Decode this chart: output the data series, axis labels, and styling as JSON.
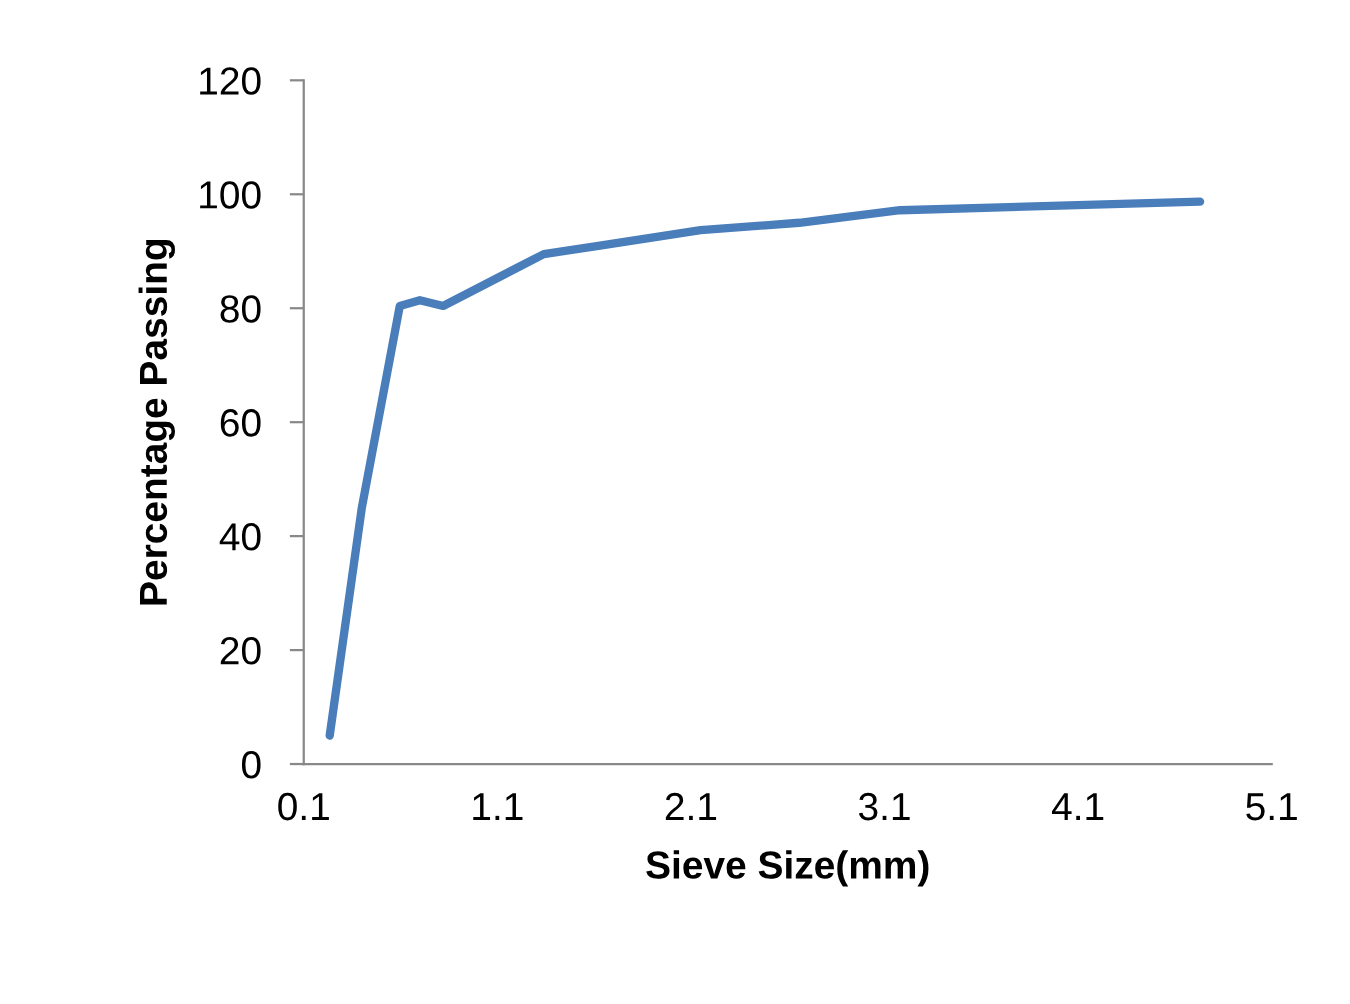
{
  "chart_data": {
    "type": "line",
    "xlabel": "Sieve Size(mm)",
    "ylabel": "Percentage Passing",
    "x": [
      0.234,
      0.4,
      0.596,
      0.7,
      0.82,
      1.34,
      1.63,
      2.15,
      2.66,
      3.18,
      4.73
    ],
    "series": [
      {
        "color": "#4a7ebb",
        "values": [
          5,
          45,
          80.4,
          81.4,
          80.4,
          89.5,
          91,
          93.7,
          95,
          97.2,
          98.7
        ]
      }
    ],
    "xlim": [
      0.1,
      5.1
    ],
    "xticks": [
      0.1,
      1.1,
      2.1,
      3.1,
      4.1,
      5.1
    ],
    "ylim": [
      0,
      120
    ],
    "yticks": [
      0,
      20,
      40,
      60,
      80,
      100,
      120
    ],
    "grid": false,
    "legend": false,
    "marker": "none",
    "line_style": "solid"
  }
}
